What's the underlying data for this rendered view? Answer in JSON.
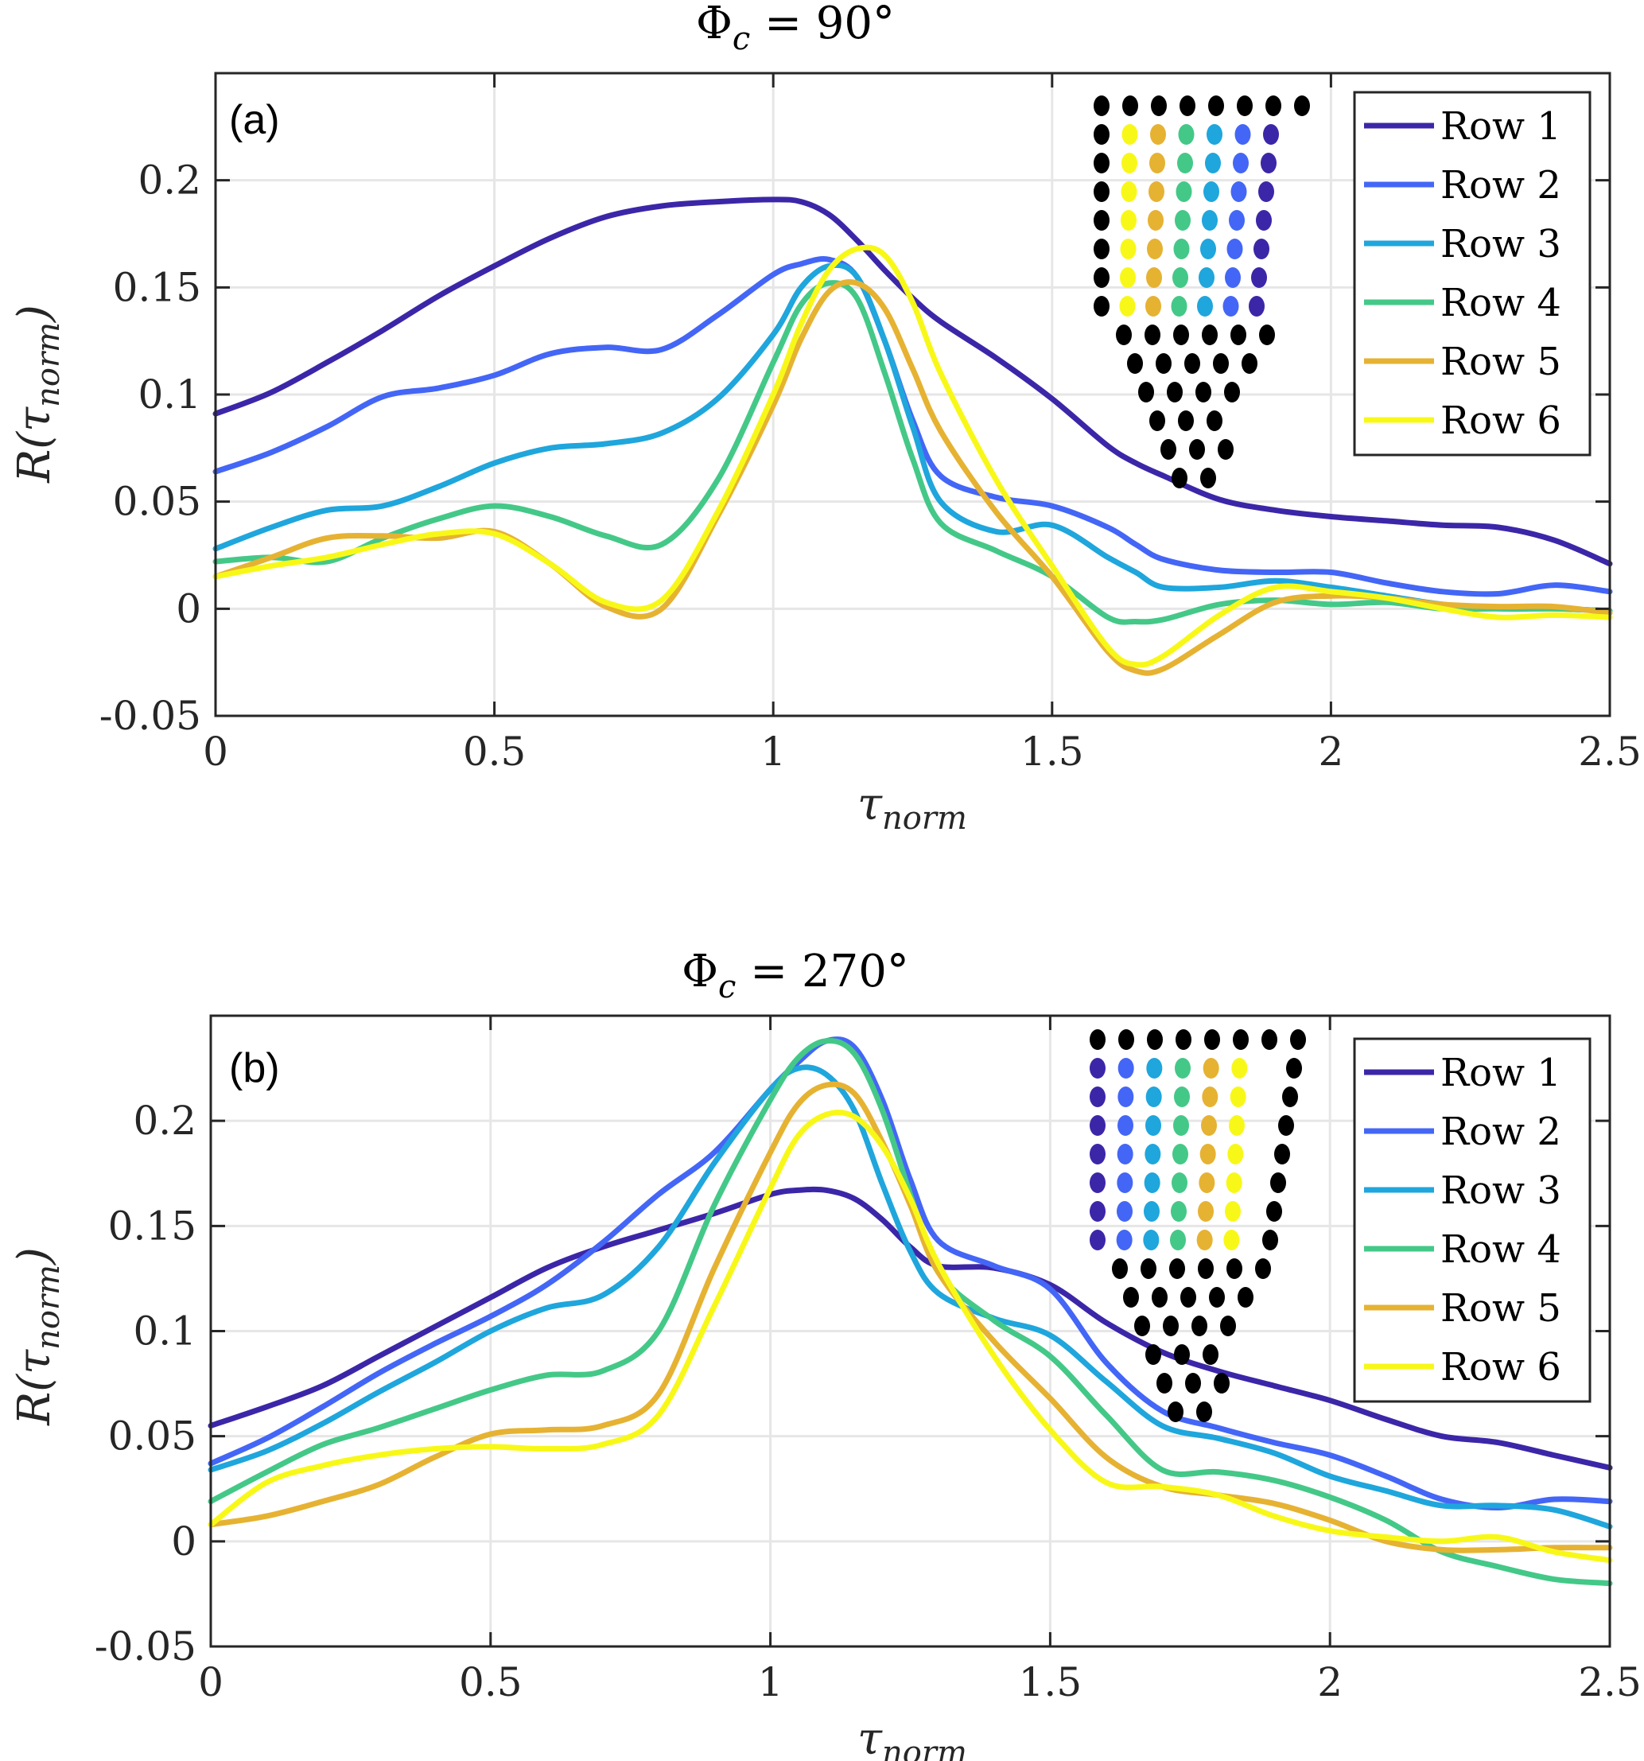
{
  "figure": {
    "legend_entries": [
      "Row 1",
      "Row 2",
      "Row 3",
      "Row 4",
      "Row 5",
      "Row 6"
    ],
    "row_colors": [
      "#3c26a8",
      "#4466f6",
      "#1fa6dc",
      "#44c888",
      "#e6b232",
      "#f8f818"
    ],
    "inset_dot_color_black": "#000000"
  },
  "chart_data": [
    {
      "type": "line",
      "panel_label": "(a)",
      "title": "Φc = 90°",
      "title_main": "Φ",
      "title_sub": "c",
      "title_rest": " = 90°",
      "xlabel": "τnorm",
      "xlabel_main": "τ",
      "xlabel_sub": "norm",
      "ylabel": "R(τnorm)",
      "ylabel_main": "R(τ",
      "ylabel_sub": "norm",
      "ylabel_close": ")",
      "xlim": [
        0,
        2.5
      ],
      "ylim": [
        -0.05,
        0.25
      ],
      "xticks": [
        0,
        0.5,
        1,
        1.5,
        2,
        2.5
      ],
      "xtick_labels": [
        "0",
        "0.5",
        "1",
        "1.5",
        "2",
        "2.5"
      ],
      "yticks": [
        -0.05,
        0,
        0.05,
        0.1,
        0.15,
        0.2
      ],
      "ytick_labels": [
        "-0.05",
        "0",
        "0.05",
        "0.1",
        "0.15",
        "0.2"
      ],
      "grid": true,
      "legend_position": "top-right",
      "inset": "sensor array, colored columns right-to-left Row 1..Row 6",
      "x": [
        0,
        0.1,
        0.2,
        0.3,
        0.4,
        0.5,
        0.6,
        0.7,
        0.8,
        0.9,
        1.0,
        1.05,
        1.1,
        1.15,
        1.2,
        1.25,
        1.3,
        1.4,
        1.5,
        1.6,
        1.65,
        1.7,
        1.8,
        1.9,
        2.0,
        2.1,
        2.2,
        2.3,
        2.4,
        2.5
      ],
      "series": [
        {
          "name": "Row 1",
          "values": [
            0.091,
            0.101,
            0.115,
            0.13,
            0.146,
            0.16,
            0.173,
            0.183,
            0.188,
            0.19,
            0.191,
            0.19,
            0.184,
            0.172,
            0.158,
            0.145,
            0.134,
            0.117,
            0.098,
            0.076,
            0.068,
            0.062,
            0.051,
            0.046,
            0.043,
            0.041,
            0.039,
            0.038,
            0.032,
            0.021
          ]
        },
        {
          "name": "Row 2",
          "values": [
            0.064,
            0.073,
            0.085,
            0.099,
            0.103,
            0.109,
            0.119,
            0.122,
            0.121,
            0.137,
            0.156,
            0.161,
            0.163,
            0.155,
            0.125,
            0.088,
            0.062,
            0.052,
            0.048,
            0.038,
            0.03,
            0.023,
            0.018,
            0.017,
            0.017,
            0.012,
            0.008,
            0.007,
            0.011,
            0.008
          ]
        },
        {
          "name": "Row 3",
          "values": [
            0.028,
            0.038,
            0.046,
            0.048,
            0.057,
            0.068,
            0.075,
            0.077,
            0.082,
            0.098,
            0.128,
            0.15,
            0.16,
            0.155,
            0.125,
            0.085,
            0.05,
            0.036,
            0.039,
            0.024,
            0.017,
            0.01,
            0.01,
            0.013,
            0.01,
            0.006,
            0.002,
            0.0,
            0.0,
            -0.001
          ]
        },
        {
          "name": "Row 4",
          "values": [
            0.022,
            0.024,
            0.022,
            0.033,
            0.042,
            0.048,
            0.043,
            0.034,
            0.03,
            0.06,
            0.115,
            0.142,
            0.152,
            0.145,
            0.11,
            0.07,
            0.04,
            0.027,
            0.015,
            -0.004,
            -0.006,
            -0.005,
            0.002,
            0.004,
            0.002,
            0.003,
            0.0,
            0.0,
            0.0,
            -0.001
          ]
        },
        {
          "name": "Row 5",
          "values": [
            0.015,
            0.024,
            0.033,
            0.034,
            0.033,
            0.036,
            0.021,
            0.001,
            0.0,
            0.043,
            0.095,
            0.126,
            0.148,
            0.152,
            0.14,
            0.112,
            0.083,
            0.045,
            0.015,
            -0.02,
            -0.029,
            -0.028,
            -0.012,
            0.003,
            0.006,
            0.005,
            0.002,
            0.001,
            0.001,
            -0.002
          ]
        },
        {
          "name": "Row 6",
          "values": [
            0.015,
            0.02,
            0.024,
            0.03,
            0.035,
            0.035,
            0.021,
            0.003,
            0.004,
            0.045,
            0.1,
            0.133,
            0.158,
            0.168,
            0.165,
            0.143,
            0.11,
            0.06,
            0.02,
            -0.018,
            -0.026,
            -0.022,
            -0.003,
            0.01,
            0.008,
            0.005,
            0.0,
            -0.004,
            -0.003,
            -0.004
          ]
        }
      ]
    },
    {
      "type": "line",
      "panel_label": "(b)",
      "title": "Φc = 270°",
      "title_main": "Φ",
      "title_sub": "c",
      "title_rest": " = 270°",
      "xlabel": "τnorm",
      "xlabel_main": "τ",
      "xlabel_sub": "norm",
      "ylabel": "R(τnorm)",
      "ylabel_main": "R(τ",
      "ylabel_sub": "norm",
      "ylabel_close": ")",
      "xlim": [
        0,
        2.5
      ],
      "ylim": [
        -0.05,
        0.25
      ],
      "xticks": [
        0,
        0.5,
        1,
        1.5,
        2,
        2.5
      ],
      "xtick_labels": [
        "0",
        "0.5",
        "1",
        "1.5",
        "2",
        "2.5"
      ],
      "yticks": [
        -0.05,
        0,
        0.05,
        0.1,
        0.15,
        0.2
      ],
      "ytick_labels": [
        "-0.05",
        "0",
        "0.05",
        "0.1",
        "0.15",
        "0.2"
      ],
      "grid": true,
      "legend_position": "top-right",
      "inset": "sensor array, colored columns left-to-right Row 1..Row 6",
      "x": [
        0,
        0.1,
        0.2,
        0.3,
        0.4,
        0.5,
        0.6,
        0.7,
        0.8,
        0.9,
        1.0,
        1.05,
        1.1,
        1.15,
        1.2,
        1.25,
        1.3,
        1.4,
        1.5,
        1.6,
        1.7,
        1.8,
        1.9,
        2.0,
        2.1,
        2.2,
        2.3,
        2.4,
        2.5
      ],
      "series": [
        {
          "name": "Row 1",
          "values": [
            0.055,
            0.064,
            0.074,
            0.088,
            0.102,
            0.116,
            0.13,
            0.14,
            0.148,
            0.156,
            0.165,
            0.167,
            0.167,
            0.163,
            0.153,
            0.14,
            0.131,
            0.13,
            0.122,
            0.104,
            0.09,
            0.081,
            0.074,
            0.067,
            0.058,
            0.05,
            0.047,
            0.041,
            0.035
          ]
        },
        {
          "name": "Row 2",
          "values": [
            0.037,
            0.049,
            0.064,
            0.08,
            0.094,
            0.107,
            0.122,
            0.142,
            0.165,
            0.185,
            0.215,
            0.228,
            0.238,
            0.235,
            0.21,
            0.172,
            0.143,
            0.131,
            0.12,
            0.085,
            0.062,
            0.054,
            0.047,
            0.041,
            0.031,
            0.02,
            0.016,
            0.02,
            0.019
          ]
        },
        {
          "name": "Row 3",
          "values": [
            0.034,
            0.043,
            0.056,
            0.071,
            0.085,
            0.1,
            0.111,
            0.117,
            0.14,
            0.18,
            0.215,
            0.225,
            0.222,
            0.205,
            0.17,
            0.138,
            0.118,
            0.106,
            0.098,
            0.076,
            0.055,
            0.049,
            0.042,
            0.031,
            0.024,
            0.017,
            0.017,
            0.015,
            0.007
          ]
        },
        {
          "name": "Row 4",
          "values": [
            0.019,
            0.033,
            0.046,
            0.054,
            0.063,
            0.072,
            0.079,
            0.081,
            0.1,
            0.16,
            0.21,
            0.23,
            0.238,
            0.232,
            0.205,
            0.165,
            0.128,
            0.105,
            0.088,
            0.06,
            0.034,
            0.033,
            0.029,
            0.021,
            0.01,
            -0.005,
            -0.012,
            -0.018,
            -0.02
          ]
        },
        {
          "name": "Row 5",
          "values": [
            0.008,
            0.012,
            0.019,
            0.027,
            0.04,
            0.051,
            0.053,
            0.055,
            0.07,
            0.13,
            0.185,
            0.208,
            0.217,
            0.213,
            0.19,
            0.16,
            0.128,
            0.095,
            0.068,
            0.04,
            0.026,
            0.022,
            0.018,
            0.01,
            0.0,
            -0.004,
            -0.004,
            -0.003,
            -0.003
          ]
        },
        {
          "name": "Row 6",
          "values": [
            0.008,
            0.028,
            0.036,
            0.041,
            0.044,
            0.045,
            0.044,
            0.046,
            0.06,
            0.112,
            0.168,
            0.193,
            0.203,
            0.202,
            0.188,
            0.163,
            0.132,
            0.088,
            0.053,
            0.028,
            0.026,
            0.022,
            0.012,
            0.005,
            0.002,
            0.0,
            0.002,
            -0.005,
            -0.009
          ]
        }
      ]
    }
  ]
}
